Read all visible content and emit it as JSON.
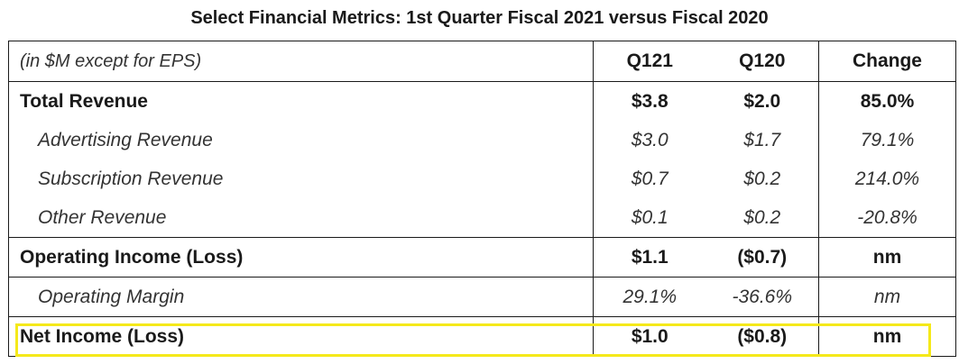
{
  "title": "Select Financial Metrics: 1st Quarter Fiscal 2021 versus Fiscal 2020",
  "table": {
    "units_note": "(in $M except for EPS)",
    "columns": [
      "Q121",
      "Q120",
      "Change"
    ],
    "rows": [
      {
        "label": "Total Revenue",
        "q121": "$3.8",
        "q120": "$2.0",
        "change": "85.0%"
      },
      {
        "label": "Advertising Revenue",
        "q121": "$3.0",
        "q120": "$1.7",
        "change": "79.1%"
      },
      {
        "label": "Subscription Revenue",
        "q121": "$0.7",
        "q120": "$0.2",
        "change": "214.0%"
      },
      {
        "label": "Other Revenue",
        "q121": "$0.1",
        "q120": "$0.2",
        "change": "-20.8%"
      },
      {
        "label": "Operating Income (Loss)",
        "q121": "$1.1",
        "q120": "($0.7)",
        "change": "nm"
      },
      {
        "label": "Operating Margin",
        "q121": "29.1%",
        "q120": "-36.6%",
        "change": "nm"
      },
      {
        "label": "Net Income (Loss)",
        "q121": "$1.0",
        "q120": "($0.8)",
        "change": "nm"
      }
    ]
  },
  "highlight_color": "#f5e91a"
}
